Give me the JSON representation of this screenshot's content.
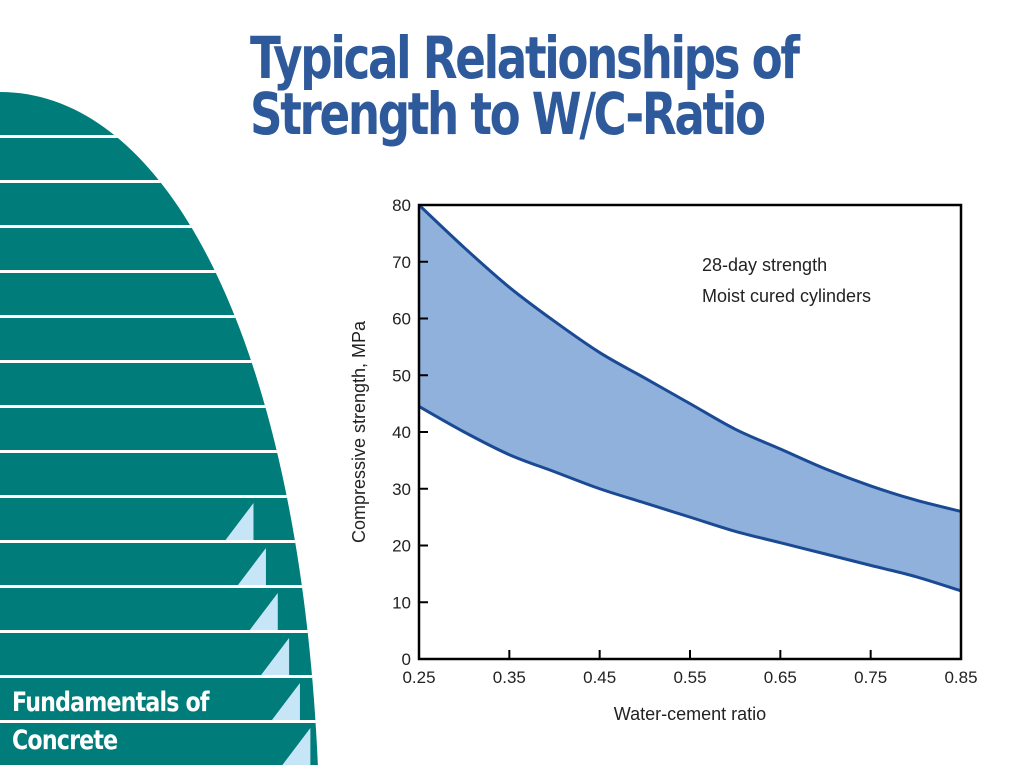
{
  "slide": {
    "title_lines": [
      "Typical Relationships of",
      "Strength to W/C-Ratio"
    ],
    "footer_lines": [
      "Fundamentals of",
      "Concrete"
    ]
  },
  "colors": {
    "title": "#2e5a9c",
    "footer_text": "#ffffff",
    "teal": "#007c7a",
    "stripe": "#ffffff",
    "triangle": "#c6e6f7",
    "band_fill": "#8fb1dc",
    "band_edge": "#1a4a94",
    "axis": "#000000"
  },
  "chart_data": {
    "type": "area",
    "xlabel": "Water-cement ratio",
    "ylabel": "Compressive strength, MPa",
    "xlim": [
      0.25,
      0.85
    ],
    "ylim": [
      0,
      80
    ],
    "xticks": [
      "0.25",
      "0.35",
      "0.45",
      "0.55",
      "0.65",
      "0.75",
      "0.85"
    ],
    "yticks": [
      "0",
      "10",
      "20",
      "30",
      "40",
      "50",
      "60",
      "70",
      "80"
    ],
    "annotation_lines": [
      "28-day strength",
      "Moist cured cylinders"
    ],
    "x": [
      0.25,
      0.3,
      0.35,
      0.4,
      0.45,
      0.5,
      0.55,
      0.6,
      0.65,
      0.7,
      0.75,
      0.8,
      0.85
    ],
    "series": [
      {
        "values": [
          80,
          72.5,
          65.5,
          59.5,
          54,
          49.5,
          45,
          40.5,
          37,
          33.5,
          30.5,
          28,
          26
        ]
      },
      {
        "values": [
          44.5,
          40,
          36,
          33,
          30,
          27.5,
          25,
          22.5,
          20.5,
          18.5,
          16.5,
          14.5,
          12
        ]
      }
    ],
    "band_between_series": true,
    "grid": false
  }
}
